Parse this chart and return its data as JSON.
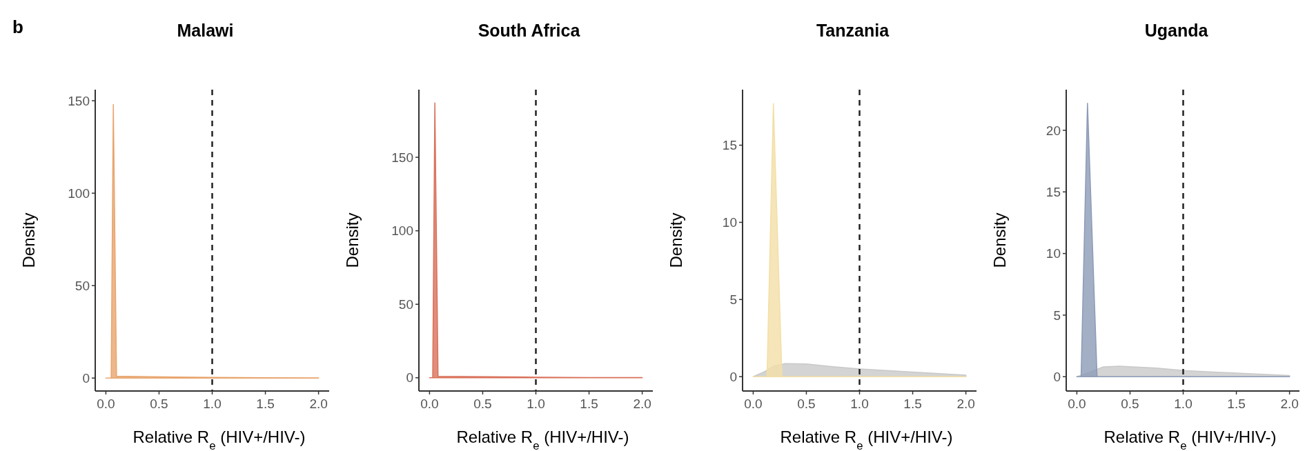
{
  "chart_data": [
    {
      "type": "area",
      "title": "Malawi",
      "xlabel": "Relative R$_{e}$ (HIV+/HIV-)",
      "ylabel": "Density",
      "annotations": [
        "b"
      ],
      "xlim": [
        -0.1,
        2.1
      ],
      "ylim": [
        -7,
        156
      ],
      "xticks": [
        {
          "value": 0,
          "label": "0.0"
        },
        {
          "value": 0.5,
          "label": "0.5"
        },
        {
          "value": 1,
          "label": "1.0"
        },
        {
          "value": 1.5,
          "label": "1.5"
        },
        {
          "value": 2,
          "label": "2.0"
        }
      ],
      "yticks": [
        0,
        50,
        100,
        150
      ],
      "grid": false,
      "ref_lines": [
        {
          "axis": "x",
          "value": 1,
          "color": "#222222",
          "line_style": "dashed"
        }
      ],
      "series": [
        {
          "color": "#e8a56e",
          "x": [
            0.0,
            0.05,
            0.07,
            0.1,
            0.3,
            1.0,
            1.5,
            2.0
          ],
          "values": [
            0,
            0,
            148,
            1,
            0.8,
            0.4,
            0.2,
            0.1
          ]
        }
      ]
    },
    {
      "type": "area",
      "title": "South Africa",
      "xlabel": "Relative R$_{e}$ (HIV+/HIV-)",
      "ylabel": "Density",
      "xlim": [
        -0.1,
        2.1
      ],
      "ylim": [
        -9,
        196
      ],
      "xticks": [
        {
          "value": 0,
          "label": "0.0"
        },
        {
          "value": 0.5,
          "label": "0.5"
        },
        {
          "value": 1,
          "label": "1.0"
        },
        {
          "value": 1.5,
          "label": "1.5"
        },
        {
          "value": 2,
          "label": "2.0"
        }
      ],
      "yticks": [
        0,
        50,
        100,
        150
      ],
      "grid": false,
      "ref_lines": [
        {
          "axis": "x",
          "value": 1,
          "color": "#222222",
          "line_style": "dashed"
        }
      ],
      "series": [
        {
          "color": "#d9705a",
          "x": [
            0.0,
            0.03,
            0.05,
            0.08,
            0.3,
            1.0,
            1.5,
            2.0
          ],
          "values": [
            0,
            0,
            187,
            1,
            0.8,
            0.4,
            0.2,
            0.1
          ]
        }
      ]
    },
    {
      "type": "area",
      "title": "Tanzania",
      "xlabel": "Relative R$_{e}$ (HIV+/HIV-)",
      "ylabel": "Density",
      "xlim": [
        -0.1,
        2.1
      ],
      "ylim": [
        -0.93,
        18.6
      ],
      "xticks": [
        {
          "value": 0,
          "label": "0.0"
        },
        {
          "value": 0.5,
          "label": "0.5"
        },
        {
          "value": 1,
          "label": "1.0"
        },
        {
          "value": 1.5,
          "label": "1.5"
        },
        {
          "value": 2,
          "label": "2.0"
        }
      ],
      "yticks": [
        0,
        5,
        10,
        15
      ],
      "grid": false,
      "ref_lines": [
        {
          "axis": "x",
          "value": 1,
          "color": "#222222",
          "line_style": "dashed"
        }
      ],
      "series": [
        {
          "color": "#c9c9c9",
          "x": [
            0.0,
            0.1,
            0.2,
            0.3,
            0.5,
            0.75,
            1.0,
            1.25,
            1.5,
            1.75,
            2.0
          ],
          "values": [
            0,
            0.3,
            0.7,
            0.85,
            0.82,
            0.65,
            0.5,
            0.4,
            0.3,
            0.2,
            0.1
          ]
        },
        {
          "color": "#f3dfa6",
          "x": [
            0.0,
            0.13,
            0.19,
            0.27,
            2.0
          ],
          "values": [
            0,
            0,
            17.7,
            0,
            0
          ]
        }
      ]
    },
    {
      "type": "area",
      "title": "Uganda",
      "xlabel": "Relative R$_{e}$ (HIV+/HIV-)",
      "ylabel": "Density",
      "xlim": [
        -0.1,
        2.1
      ],
      "ylim": [
        -1.16,
        23.3
      ],
      "xticks": [
        {
          "value": 0,
          "label": "0.0"
        },
        {
          "value": 0.5,
          "label": "0.5"
        },
        {
          "value": 1,
          "label": "1.0"
        },
        {
          "value": 1.5,
          "label": "1.5"
        },
        {
          "value": 2,
          "label": "2.0"
        }
      ],
      "yticks": [
        0,
        5,
        10,
        15,
        20
      ],
      "grid": false,
      "ref_lines": [
        {
          "axis": "x",
          "value": 1,
          "color": "#222222",
          "line_style": "dashed"
        }
      ],
      "series": [
        {
          "color": "#c9c9c9",
          "x": [
            0.0,
            0.1,
            0.25,
            0.4,
            0.75,
            1.0,
            1.25,
            1.5,
            1.75,
            2.0
          ],
          "values": [
            0,
            0.3,
            0.8,
            0.85,
            0.7,
            0.5,
            0.4,
            0.3,
            0.2,
            0.1
          ]
        },
        {
          "color": "#8c9bb6",
          "x": [
            0.0,
            0.04,
            0.1,
            0.19,
            2.0
          ],
          "values": [
            0,
            0,
            22.2,
            0,
            0
          ]
        }
      ]
    }
  ]
}
